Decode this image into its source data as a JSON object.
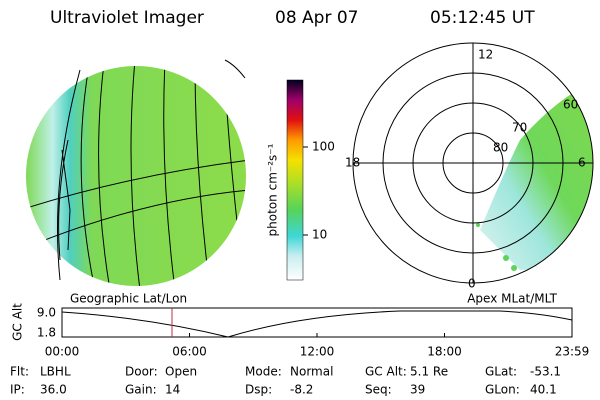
{
  "header": {
    "title": "Ultraviolet Imager",
    "date": "08 Apr 07",
    "time": "05:12:45 UT"
  },
  "colorbar": {
    "label": "photon cm⁻²s⁻¹",
    "ticks": [
      "100",
      "10"
    ]
  },
  "polar": {
    "mlt_labels": [
      "12",
      "18",
      "6",
      "0"
    ],
    "mlat_labels": [
      "60",
      "70",
      "80"
    ]
  },
  "panel_labels": {
    "left": "Geographic Lat/Lon",
    "right": "Apex MLat/MLT"
  },
  "timeline": {
    "axis_label": "GC Alt",
    "yticks": [
      "9.0",
      "1.8"
    ],
    "xticks": [
      "00:00",
      "06:00",
      "12:00",
      "18:00",
      "23:59"
    ]
  },
  "footer": [
    [
      [
        "Flt:",
        "LBHL"
      ],
      [
        "Door:",
        "Open"
      ],
      [
        "Mode:",
        "Normal"
      ],
      [
        "GC Alt:",
        "5.1 Re"
      ],
      [
        "GLat:",
        "-53.1"
      ]
    ],
    [
      [
        "IP:",
        "36.0"
      ],
      [
        "Gain:",
        "14"
      ],
      [
        "Dsp:",
        "-8.2"
      ],
      [
        "Seq:",
        "39"
      ],
      [
        "GLon:",
        "40.1"
      ]
    ]
  ]
}
